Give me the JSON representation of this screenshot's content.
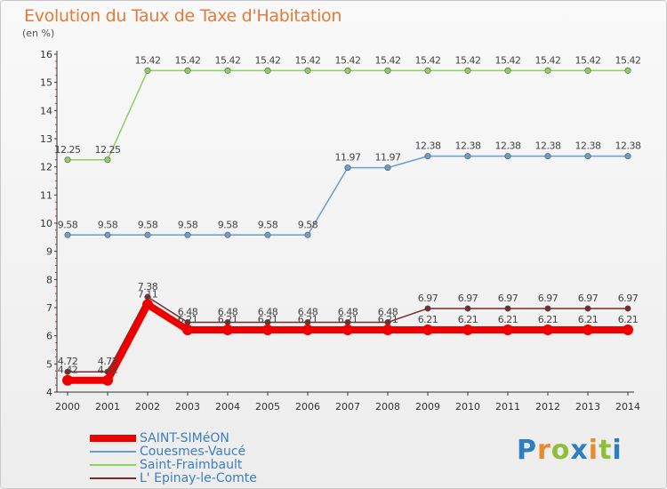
{
  "header": {
    "title": "Evolution du Taux de Taxe d'Habitation",
    "subtitle": "(en %)"
  },
  "chart_data": {
    "type": "line",
    "title": "Evolution du Taux de Taxe d'Habitation",
    "subtitle": "(en %)",
    "xlabel": "",
    "ylabel": "",
    "x": [
      2000,
      2001,
      2002,
      2003,
      2004,
      2005,
      2006,
      2007,
      2008,
      2009,
      2010,
      2011,
      2012,
      2013,
      2014
    ],
    "ylim": [
      4,
      16
    ],
    "yticks": [
      4,
      5,
      6,
      7,
      8,
      9,
      10,
      11,
      12,
      13,
      14,
      15,
      16
    ],
    "grid": false,
    "legend_position": "bottom-left",
    "series": [
      {
        "name": "SAINT-SIMéON",
        "color": "#ee0000",
        "width": 8,
        "labels": [
          "4.42",
          "4.42",
          "7.11",
          "6.21",
          "6.21",
          "6.21",
          "6.21",
          "6.21",
          "6.21",
          "6.21",
          "6.21",
          "6.21",
          "6.21",
          "6.21",
          "6.21"
        ],
        "values": [
          4.42,
          4.42,
          7.11,
          6.21,
          6.21,
          6.21,
          6.21,
          6.21,
          6.21,
          6.21,
          6.21,
          6.21,
          6.21,
          6.21,
          6.21
        ]
      },
      {
        "name": "Couesmes-Vaucé",
        "color": "#6b9ed0",
        "width": 1.5,
        "labels": [
          "9.58",
          "9.58",
          "9.58",
          "9.58",
          "9.58",
          "9.58",
          "9.58",
          "11.97",
          "11.97",
          "12.38",
          "12.38",
          "12.38",
          "12.38",
          "12.38",
          "12.38"
        ],
        "values": [
          9.58,
          9.58,
          9.58,
          9.58,
          9.58,
          9.58,
          9.58,
          11.97,
          11.97,
          12.38,
          12.38,
          12.38,
          12.38,
          12.38,
          12.38
        ]
      },
      {
        "name": "Saint-Fraimbault",
        "color": "#8fd05e",
        "width": 1.5,
        "labels": [
          "12.25",
          "12.25",
          "15.42",
          "15.42",
          "15.42",
          "15.42",
          "15.42",
          "15.42",
          "15.42",
          "15.42",
          "15.42",
          "15.42",
          "15.42",
          "15.42",
          "15.42"
        ],
        "values": [
          12.25,
          12.25,
          15.42,
          15.42,
          15.42,
          15.42,
          15.42,
          15.42,
          15.42,
          15.42,
          15.42,
          15.42,
          15.42,
          15.42,
          15.42
        ]
      },
      {
        "name": "L' Epinay-le-Comte",
        "color": "#7a2a2a",
        "width": 1.5,
        "labels": [
          "4.72",
          "4.72",
          "7.38",
          "6.48",
          "6.48",
          "6.48",
          "6.48",
          "6.48",
          "6.48",
          "6.97",
          "6.97",
          "6.97",
          "6.97",
          "6.97",
          "6.97"
        ],
        "values": [
          4.72,
          4.72,
          7.38,
          6.48,
          6.48,
          6.48,
          6.48,
          6.48,
          6.48,
          6.97,
          6.97,
          6.97,
          6.97,
          6.97,
          6.97
        ]
      }
    ]
  },
  "legend": {
    "items": [
      {
        "label": "SAINT-SIMéON",
        "color": "#ee0000"
      },
      {
        "label": "Couesmes-Vaucé",
        "color": "#6b9ed0"
      },
      {
        "label": "Saint-Fraimbault",
        "color": "#8fd05e"
      },
      {
        "label": "L' Epinay-le-Comte",
        "color": "#7a2a2a"
      }
    ]
  },
  "logo": {
    "text": "Proxiti",
    "letters": [
      "P",
      "r",
      "o",
      "x",
      "i",
      "t",
      "i"
    ],
    "colors": [
      "#2e7fc1",
      "#e98b2a",
      "#8dbf3a",
      "#2e7fc1",
      "#e98b2a",
      "#8dbf3a",
      "#2e7fc1"
    ]
  }
}
